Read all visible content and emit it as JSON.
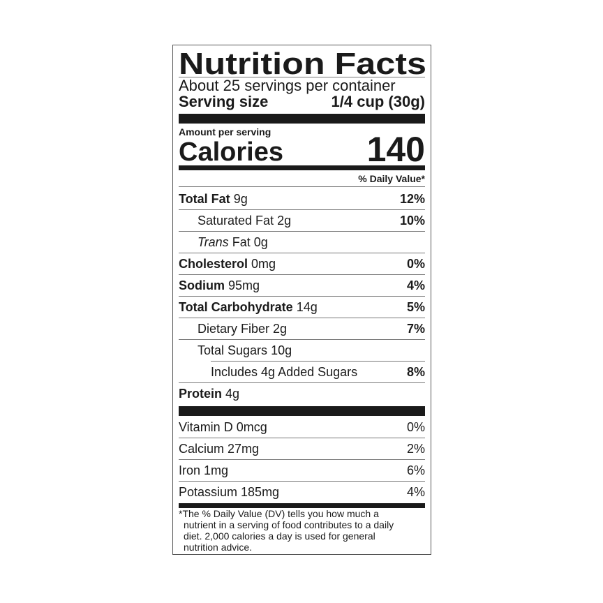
{
  "title": "Nutrition Facts",
  "servings_per_container": "About 25 servings per container",
  "serving_size": {
    "label": "Serving size",
    "value": "1/4 cup (30g)"
  },
  "amount_per_serving": "Amount per serving",
  "calories": {
    "label": "Calories",
    "value": "140"
  },
  "daily_value_header": "% Daily Value*",
  "nutrients": [
    {
      "name": "Total Fat",
      "amount": "9g",
      "dv": "12%",
      "bold": true,
      "indent": 0
    },
    {
      "name": "Saturated Fat",
      "amount": "2g",
      "dv": "10%",
      "bold": false,
      "indent": 1
    },
    {
      "name": "Trans",
      "name_suffix": "Fat",
      "amount": "0g",
      "dv": "",
      "bold": false,
      "indent": 1,
      "italic_prefix": true
    },
    {
      "name": "Cholesterol",
      "amount": "0mg",
      "dv": "0%",
      "bold": true,
      "indent": 0
    },
    {
      "name": "Sodium",
      "amount": "95mg",
      "dv": "4%",
      "bold": true,
      "indent": 0
    },
    {
      "name": "Total Carbohydrate",
      "amount": "14g",
      "dv": "5%",
      "bold": true,
      "indent": 0
    },
    {
      "name": "Dietary Fiber",
      "amount": "2g",
      "dv": "7%",
      "bold": false,
      "indent": 1
    },
    {
      "name": "Total Sugars",
      "amount": "10g",
      "dv": "",
      "bold": false,
      "indent": 1
    },
    {
      "name": "Includes 4g Added Sugars",
      "amount": "",
      "dv": "8%",
      "bold": false,
      "indent": 2
    },
    {
      "name": "Protein",
      "amount": "4g",
      "dv": "",
      "bold": true,
      "indent": 0
    }
  ],
  "vitamins": [
    {
      "name": "Vitamin D 0mcg",
      "dv": "0%"
    },
    {
      "name": "Calcium 27mg",
      "dv": "2%"
    },
    {
      "name": "Iron 1mg",
      "dv": "6%"
    },
    {
      "name": "Potassium 185mg",
      "dv": "4%"
    }
  ],
  "footnote": {
    "line1": "*The % Daily Value (DV) tells you how much a",
    "line2": "nutrient in a serving of food contributes to a daily",
    "line3": "diet. 2,000 calories a day is used for general",
    "line4": "nutrition advice."
  }
}
